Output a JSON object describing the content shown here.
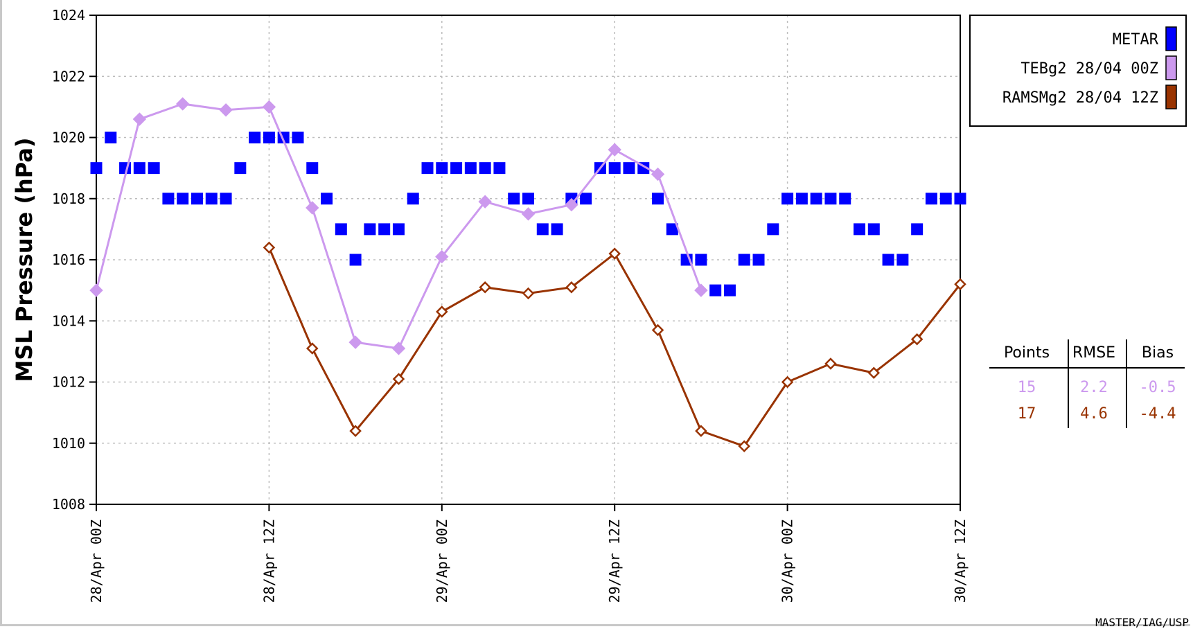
{
  "chart_data": {
    "type": "line",
    "title": "",
    "ylabel": "MSL Pressure (hPa)",
    "xlabel": "",
    "ylim": [
      1008,
      1024
    ],
    "yticks": [
      "1008",
      "1010",
      "1012",
      "1014",
      "1016",
      "1018",
      "1020",
      "1022",
      "1024"
    ],
    "xlim_hours": [
      0,
      60
    ],
    "xticks": [
      {
        "label": "28/Apr 00Z",
        "hour": 0
      },
      {
        "label": "28/Apr 12Z",
        "hour": 12
      },
      {
        "label": "29/Apr 00Z",
        "hour": 24
      },
      {
        "label": "29/Apr 12Z",
        "hour": 36
      },
      {
        "label": "30/Apr 00Z",
        "hour": 48
      },
      {
        "label": "30/Apr 12Z",
        "hour": 60
      }
    ],
    "grid": true,
    "legend_position": "top-right",
    "series": [
      {
        "name": "METAR",
        "color": "#0000ff",
        "style": "square-markers",
        "x": [
          0,
          1,
          2,
          3,
          4,
          5,
          6,
          7,
          8,
          9,
          10,
          11,
          12,
          13,
          14,
          15,
          16,
          17,
          18,
          19,
          20,
          21,
          22,
          23,
          24,
          25,
          26,
          27,
          28,
          29,
          30,
          31,
          32,
          33,
          34,
          35,
          36,
          37,
          38,
          39,
          40,
          41,
          42,
          43,
          44,
          45,
          46,
          47,
          48,
          49,
          50,
          51,
          52,
          53,
          54,
          55,
          56,
          57,
          58,
          59,
          60
        ],
        "y": [
          1019,
          1020,
          1019,
          1019,
          1019,
          1018,
          1018,
          1018,
          1018,
          1018,
          1019,
          1020,
          1020,
          1020,
          1020,
          1019,
          1018,
          1017,
          1016,
          1017,
          1017,
          1017,
          1018,
          1019,
          1019,
          1019,
          1019,
          1019,
          1019,
          1018,
          1018,
          1017,
          1017,
          1018,
          1018,
          1019,
          1019,
          1019,
          1019,
          1018,
          1017,
          1016,
          1016,
          1015,
          1015,
          1016,
          1016,
          1017,
          1018,
          1018,
          1018,
          1018,
          1018,
          1017,
          1017,
          1016,
          1016,
          1017,
          1018,
          1018,
          1018
        ]
      },
      {
        "name": "TEBg2 28/04 00Z",
        "color": "#cc99ee",
        "style": "line-diamond",
        "x": [
          0,
          3,
          6,
          9,
          12,
          15,
          18,
          21,
          24,
          27,
          30,
          33,
          36,
          39,
          42
        ],
        "y": [
          1015.0,
          1020.6,
          1021.1,
          1020.9,
          1021.0,
          1017.7,
          1013.3,
          1013.1,
          1016.1,
          1017.9,
          1017.5,
          1017.8,
          1019.6,
          1018.8,
          1015.0
        ]
      },
      {
        "name": "RAMSMg2 28/04 12Z",
        "color": "#993300",
        "style": "line-open-diamond",
        "x": [
          12,
          15,
          18,
          21,
          24,
          27,
          30,
          33,
          36,
          39,
          42,
          45,
          48,
          51,
          54,
          57,
          60
        ],
        "y": [
          1016.4,
          1013.1,
          1010.4,
          1012.1,
          1014.3,
          1015.1,
          1014.9,
          1015.1,
          1016.2,
          1013.7,
          1010.4,
          1009.9,
          1012.0,
          1012.6,
          1012.3,
          1013.4,
          1015.2
        ]
      }
    ]
  },
  "stats_table": {
    "headers": [
      "Points",
      "RMSE",
      "Bias"
    ],
    "rows": [
      {
        "points": "15",
        "rmse": "2.2",
        "bias": "-0.5",
        "color": "#cc99ee"
      },
      {
        "points": "17",
        "rmse": "4.6",
        "bias": "-4.4",
        "color": "#993300"
      }
    ]
  },
  "credit": "MASTER/IAG/USP"
}
